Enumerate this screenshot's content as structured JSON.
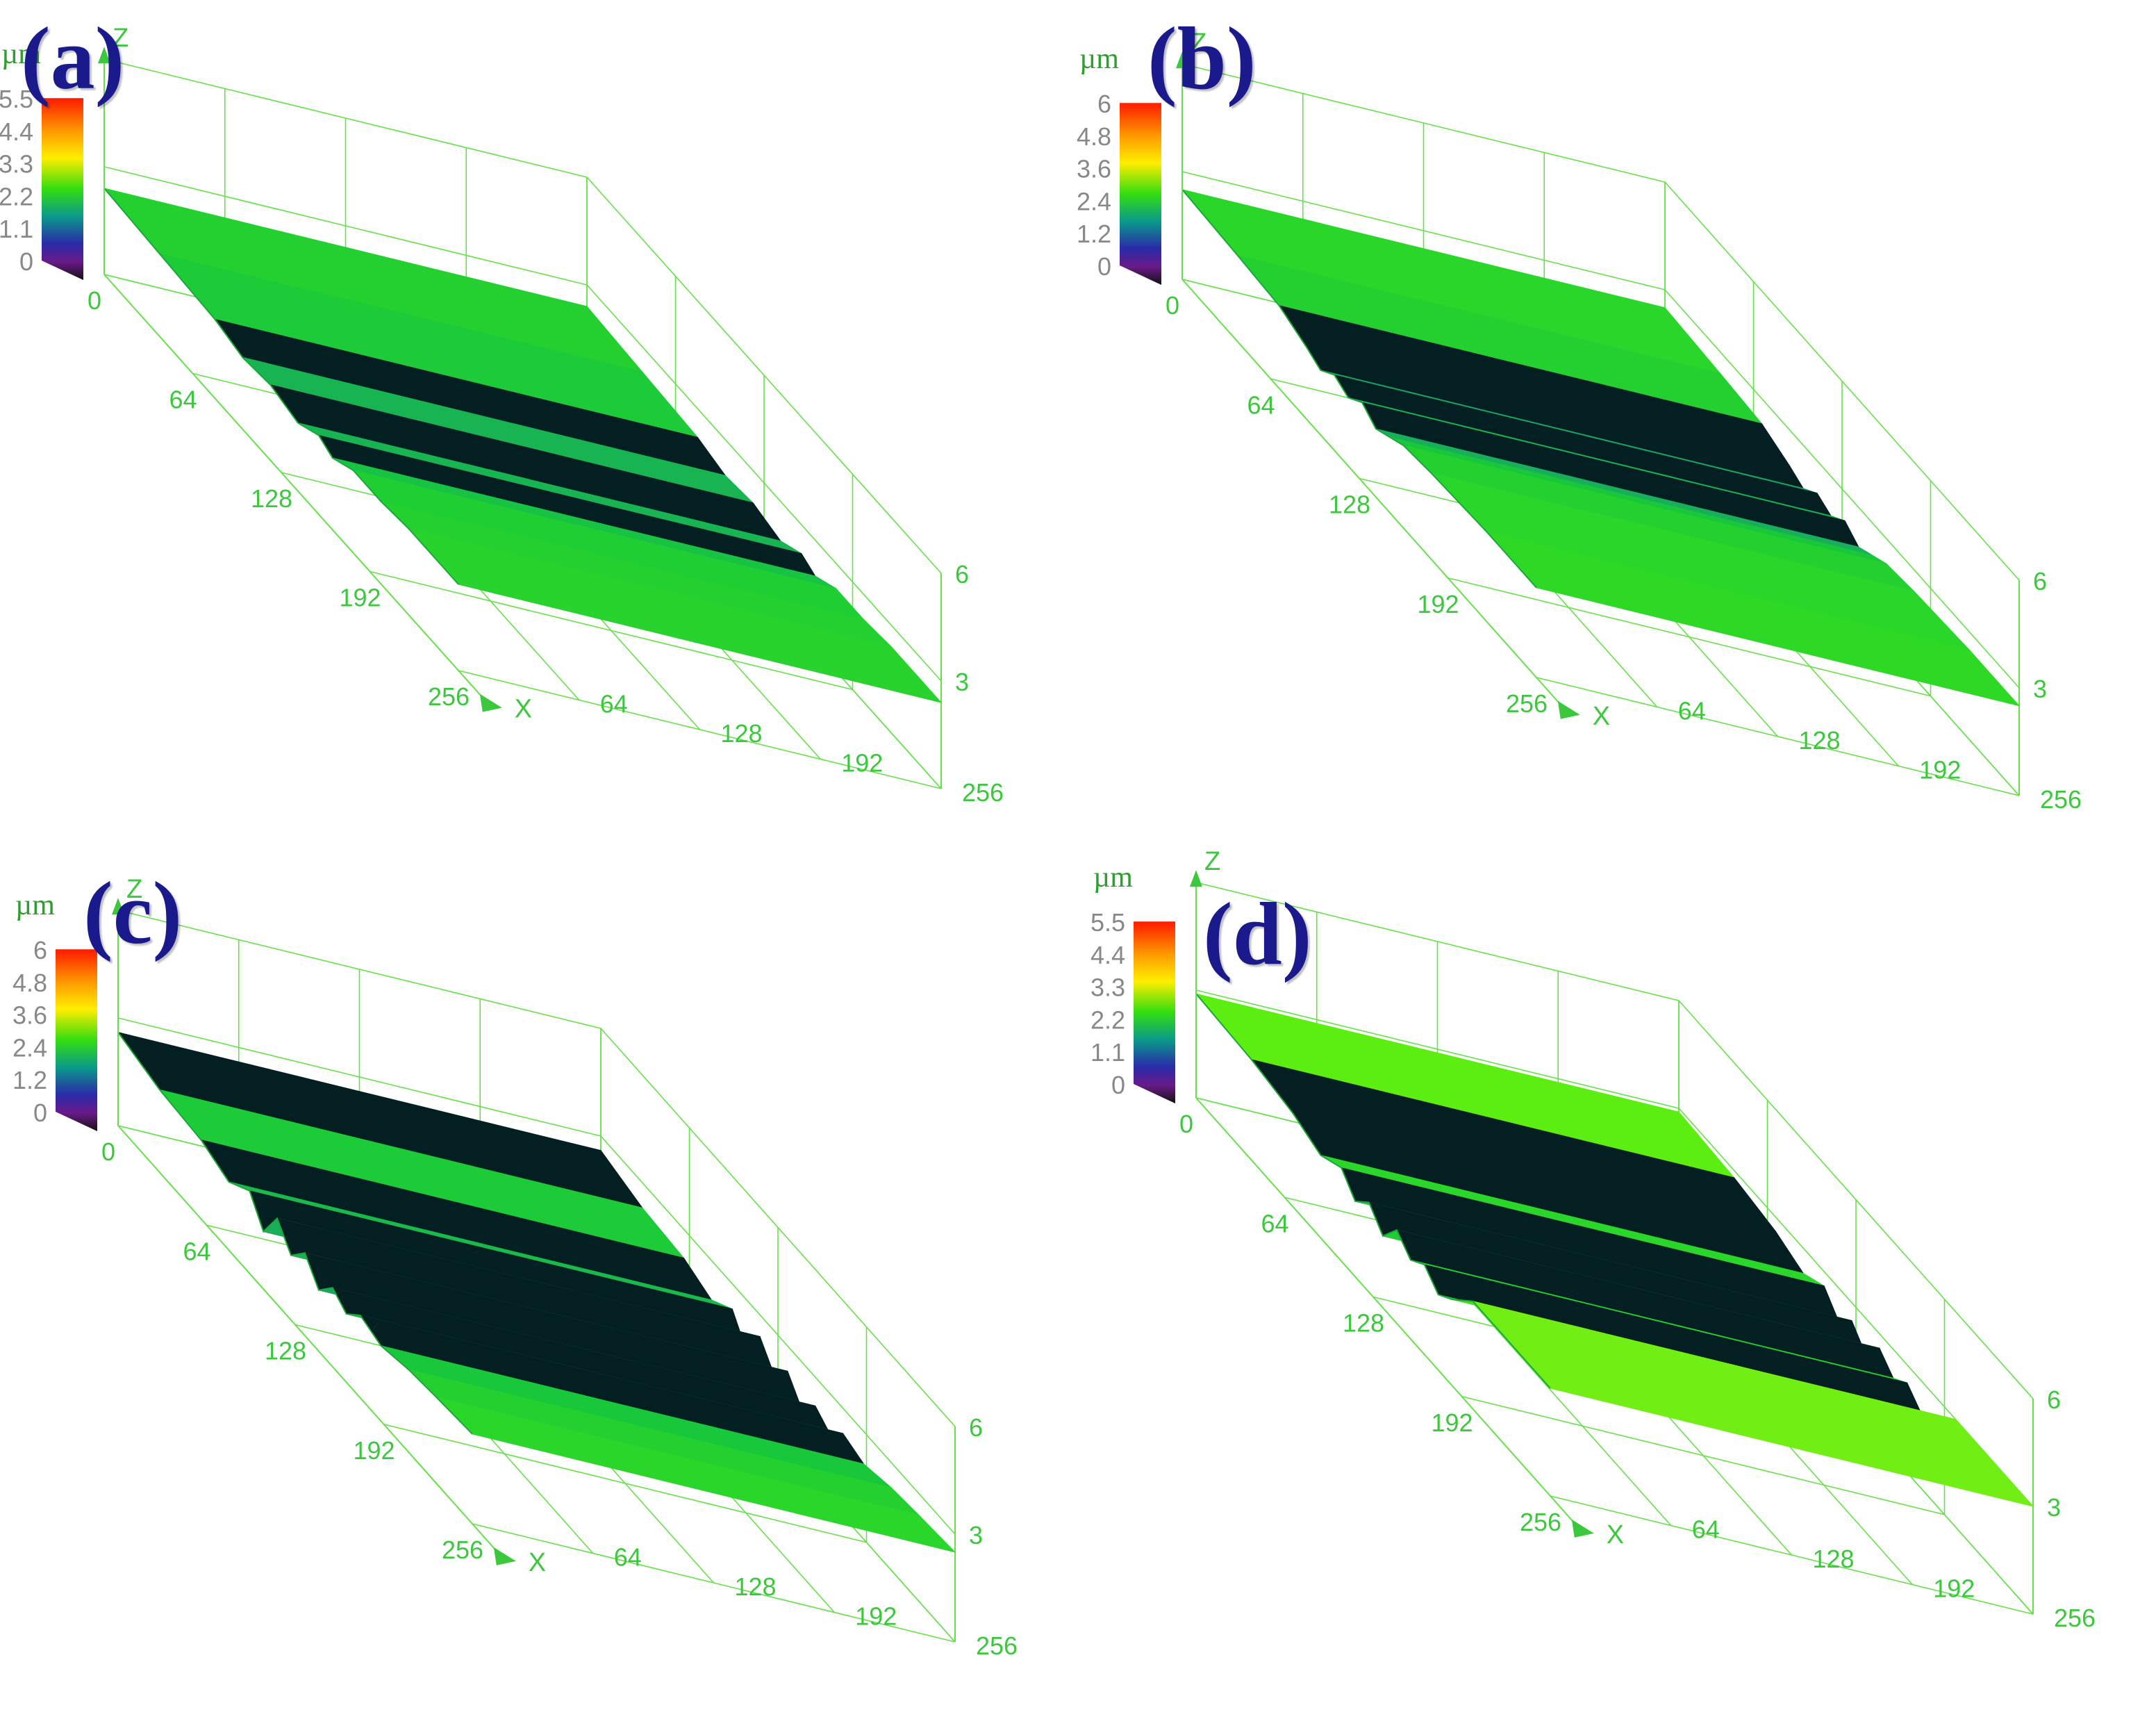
{
  "colors": {
    "axis": "#66e04a",
    "tick_text": "#3cc83c",
    "unit_text": "#2e9e2e",
    "label": "#1a1a8c"
  },
  "chart_data": [
    {
      "type": "surface3d",
      "panel_label": "(a)",
      "unit": "µm",
      "colorbar_ticks": [
        "5.5",
        "4.4",
        "3.3",
        "2.2",
        "1.1",
        "0"
      ],
      "x_ticks": [
        "0",
        "64",
        "128",
        "192",
        "256"
      ],
      "y_ticks": [
        "64",
        "128",
        "192",
        "256"
      ],
      "z_ticks": [
        "3",
        "6"
      ],
      "xlabel": "X",
      "zlabel": "Z",
      "xlim": [
        0,
        256
      ],
      "ylim": [
        0,
        256
      ],
      "zlim": [
        0,
        6
      ],
      "surface_height": 2.4,
      "profile_x": [
        0,
        40,
        80,
        100,
        120,
        140,
        155,
        165,
        180,
        200,
        220,
        256
      ],
      "profile_z": [
        2.4,
        2.3,
        2.2,
        2.0,
        2.1,
        1.9,
        2.2,
        2.0,
        2.3,
        2.3,
        2.4,
        2.4
      ]
    },
    {
      "type": "surface3d",
      "panel_label": "(b)",
      "unit": "µm",
      "colorbar_ticks": [
        "6",
        "4.8",
        "3.6",
        "2.4",
        "1.2",
        "0"
      ],
      "x_ticks": [
        "0",
        "64",
        "128",
        "192",
        "256"
      ],
      "y_ticks": [
        "64",
        "128",
        "192",
        "256"
      ],
      "z_ticks": [
        "3",
        "6"
      ],
      "xlabel": "X",
      "zlabel": "Z",
      "xlim": [
        0,
        256
      ],
      "ylim": [
        0,
        256
      ],
      "zlim": [
        0,
        6
      ],
      "surface_height": 2.5,
      "profile_x": [
        0,
        40,
        70,
        90,
        100,
        110,
        120,
        130,
        140,
        150,
        160,
        180,
        220,
        256
      ],
      "profile_z": [
        2.5,
        2.4,
        2.3,
        2.0,
        1.8,
        2.1,
        1.9,
        2.2,
        1.9,
        2.1,
        2.3,
        2.4,
        2.5,
        2.5
      ]
    },
    {
      "type": "surface3d",
      "panel_label": "(c)",
      "unit": "µm",
      "colorbar_ticks": [
        "6",
        "4.8",
        "3.6",
        "2.4",
        "1.2",
        "0"
      ],
      "x_ticks": [
        "0",
        "64",
        "128",
        "192",
        "256"
      ],
      "y_ticks": [
        "64",
        "128",
        "192",
        "256"
      ],
      "z_ticks": [
        "3",
        "6"
      ],
      "xlabel": "X",
      "zlabel": "Z",
      "xlim": [
        0,
        256
      ],
      "ylim": [
        0,
        256
      ],
      "zlim": [
        0,
        6
      ],
      "surface_height": 2.6,
      "profile_x": [
        0,
        30,
        60,
        80,
        95,
        105,
        115,
        125,
        135,
        145,
        155,
        165,
        175,
        190,
        210,
        230,
        256
      ],
      "profile_z": [
        2.6,
        2.3,
        2.2,
        1.9,
        2.3,
        1.6,
        2.4,
        1.8,
        2.3,
        1.7,
        2.2,
        1.9,
        2.3,
        2.1,
        2.3,
        2.4,
        2.5
      ]
    },
    {
      "type": "surface3d",
      "panel_label": "(d)",
      "unit": "µm",
      "colorbar_ticks": [
        "5.5",
        "4.4",
        "3.3",
        "2.2",
        "1.1",
        "0"
      ],
      "x_ticks": [
        "0",
        "64",
        "128",
        "192",
        "256"
      ],
      "y_ticks": [
        "64",
        "128",
        "192",
        "256"
      ],
      "z_ticks": [
        "3",
        "6"
      ],
      "xlabel": "X",
      "zlabel": "Z",
      "xlim": [
        0,
        256
      ],
      "ylim": [
        0,
        256
      ],
      "zlim": [
        0,
        6
      ],
      "surface_height": 2.9,
      "profile_x": [
        0,
        40,
        70,
        90,
        105,
        115,
        125,
        135,
        145,
        155,
        165,
        175,
        185,
        200,
        256
      ],
      "profile_z": [
        2.9,
        2.8,
        2.6,
        2.3,
        2.6,
        2.1,
        2.5,
        2.0,
        2.6,
        2.2,
        2.5,
        2.1,
        2.4,
        3.0,
        3.0
      ]
    }
  ]
}
